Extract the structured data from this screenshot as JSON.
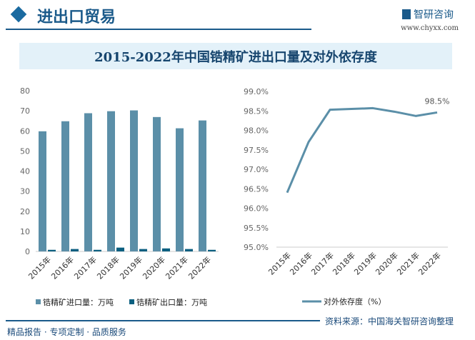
{
  "header": {
    "section_title": "进出口贸易",
    "brand": "智研咨询",
    "url": "www.chyxx.com"
  },
  "footer": {
    "tagline": "精品报告 · 专项定制 · 品质服务",
    "source": "资料来源：中国海关智研咨询整理"
  },
  "colors": {
    "import": "#5b8fa8",
    "export": "#0b5f80",
    "line": "#5b8fa8",
    "accent": "#1a5a8a"
  },
  "chart_data": [
    {
      "type": "bar",
      "title": "2015-2022年中国锆精矿进出口量及对外依存度",
      "categories": [
        "2015年",
        "2016年",
        "2017年",
        "2018年",
        "2019年",
        "2020年",
        "2021年",
        "2022年"
      ],
      "series": [
        {
          "name": "锆精矿进口量：万吨",
          "values": [
            59.8,
            64.8,
            68.8,
            69.8,
            70.2,
            66.9,
            61.3,
            65.2
          ]
        },
        {
          "name": "锆精矿出口量：万吨",
          "values": [
            0.8,
            1.2,
            0.8,
            1.9,
            1.2,
            1.5,
            1.2,
            0.8
          ]
        }
      ],
      "ylim": [
        0,
        80
      ],
      "yticks": [
        "0",
        "10",
        "20",
        "30",
        "40",
        "50",
        "60",
        "70",
        "80"
      ],
      "legend": "bottom",
      "grid": false
    },
    {
      "type": "line",
      "categories": [
        "2015年",
        "2016年",
        "2017年",
        "2018年",
        "2019年",
        "2020年",
        "2021年",
        "2022年"
      ],
      "series": [
        {
          "name": "对外依存度（%）",
          "values": [
            96.4,
            97.7,
            98.53,
            98.55,
            98.57,
            98.48,
            98.37,
            98.46
          ]
        }
      ],
      "ylim": [
        95.0,
        99.0
      ],
      "yticks": [
        "95.0%",
        "95.5%",
        "96.0%",
        "96.5%",
        "97.0%",
        "97.5%",
        "98.0%",
        "98.5%",
        "99.0%"
      ],
      "data_labels": [
        {
          "index": 7,
          "text": "98.5%"
        }
      ],
      "legend": "bottom",
      "grid": false
    }
  ]
}
